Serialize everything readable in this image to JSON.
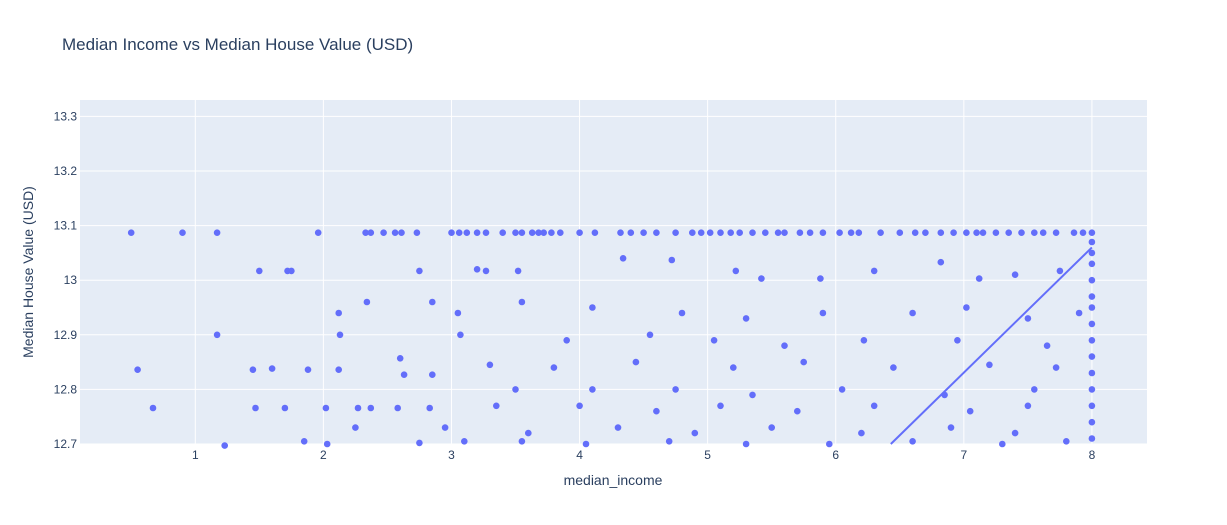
{
  "chart_data": {
    "type": "scatter",
    "title": "Median Income vs Median House Value (USD)",
    "xlabel": "median_income",
    "ylabel": "Median House Value (USD)",
    "xlim": [
      0.1,
      8.43
    ],
    "ylim": [
      12.7,
      13.33
    ],
    "x_ticks": [
      1,
      2,
      3,
      4,
      5,
      6,
      7,
      8
    ],
    "y_ticks": [
      12.7,
      12.8,
      12.9,
      13.0,
      13.1,
      13.2,
      13.3
    ],
    "x_tick_labels": [
      "1",
      "2",
      "3",
      "4",
      "5",
      "6",
      "7",
      "8"
    ],
    "y_tick_labels": [
      "12.7",
      "12.8",
      "12.9",
      "13",
      "13.1",
      "13.2",
      "13.3"
    ],
    "grid": true,
    "marker_color": "#636efa",
    "plot_background": "#e5ecf6",
    "trendline": {
      "x": [
        6.43,
        8.0
      ],
      "y": [
        12.7,
        13.06
      ]
    },
    "series": [
      {
        "points": [
          [
            0.5,
            13.087
          ],
          [
            0.9,
            13.087
          ],
          [
            1.17,
            13.087
          ],
          [
            1.96,
            13.087
          ],
          [
            2.33,
            13.087
          ],
          [
            2.37,
            13.087
          ],
          [
            2.47,
            13.087
          ],
          [
            2.56,
            13.087
          ],
          [
            2.61,
            13.087
          ],
          [
            2.73,
            13.087
          ],
          [
            3.0,
            13.087
          ],
          [
            3.06,
            13.087
          ],
          [
            3.12,
            13.087
          ],
          [
            3.2,
            13.087
          ],
          [
            3.27,
            13.087
          ],
          [
            3.4,
            13.087
          ],
          [
            3.5,
            13.087
          ],
          [
            3.55,
            13.087
          ],
          [
            3.63,
            13.087
          ],
          [
            3.68,
            13.087
          ],
          [
            3.72,
            13.087
          ],
          [
            3.78,
            13.087
          ],
          [
            3.85,
            13.087
          ],
          [
            4.0,
            13.087
          ],
          [
            4.12,
            13.087
          ],
          [
            4.32,
            13.087
          ],
          [
            4.4,
            13.087
          ],
          [
            4.5,
            13.087
          ],
          [
            4.6,
            13.087
          ],
          [
            4.75,
            13.087
          ],
          [
            4.88,
            13.087
          ],
          [
            4.95,
            13.087
          ],
          [
            5.02,
            13.087
          ],
          [
            5.1,
            13.087
          ],
          [
            5.18,
            13.087
          ],
          [
            5.25,
            13.087
          ],
          [
            5.35,
            13.087
          ],
          [
            5.45,
            13.087
          ],
          [
            5.55,
            13.087
          ],
          [
            5.6,
            13.087
          ],
          [
            5.72,
            13.087
          ],
          [
            5.8,
            13.087
          ],
          [
            5.9,
            13.087
          ],
          [
            6.03,
            13.087
          ],
          [
            6.12,
            13.087
          ],
          [
            6.18,
            13.087
          ],
          [
            6.35,
            13.087
          ],
          [
            6.5,
            13.087
          ],
          [
            6.62,
            13.087
          ],
          [
            6.7,
            13.087
          ],
          [
            6.82,
            13.087
          ],
          [
            6.92,
            13.087
          ],
          [
            7.02,
            13.087
          ],
          [
            7.1,
            13.087
          ],
          [
            7.15,
            13.087
          ],
          [
            7.25,
            13.087
          ],
          [
            7.35,
            13.087
          ],
          [
            7.45,
            13.087
          ],
          [
            7.55,
            13.087
          ],
          [
            7.62,
            13.087
          ],
          [
            7.72,
            13.087
          ],
          [
            7.86,
            13.087
          ],
          [
            7.93,
            13.087
          ],
          [
            1.5,
            13.017
          ],
          [
            1.72,
            13.017
          ],
          [
            1.75,
            13.017
          ],
          [
            2.75,
            13.017
          ],
          [
            3.2,
            13.02
          ],
          [
            3.27,
            13.017
          ],
          [
            3.52,
            13.017
          ],
          [
            4.34,
            13.04
          ],
          [
            4.72,
            13.037
          ],
          [
            5.22,
            13.017
          ],
          [
            5.42,
            13.003
          ],
          [
            5.88,
            13.003
          ],
          [
            6.3,
            13.017
          ],
          [
            6.82,
            13.033
          ],
          [
            7.12,
            13.003
          ],
          [
            7.4,
            13.01
          ],
          [
            7.75,
            13.017
          ],
          [
            2.34,
            12.96
          ],
          [
            2.12,
            12.94
          ],
          [
            2.85,
            12.96
          ],
          [
            3.05,
            12.94
          ],
          [
            3.55,
            12.96
          ],
          [
            4.1,
            12.95
          ],
          [
            4.8,
            12.94
          ],
          [
            5.3,
            12.93
          ],
          [
            5.9,
            12.94
          ],
          [
            6.6,
            12.94
          ],
          [
            7.02,
            12.95
          ],
          [
            7.5,
            12.93
          ],
          [
            7.9,
            12.94
          ],
          [
            1.17,
            12.9
          ],
          [
            2.13,
            12.9
          ],
          [
            3.07,
            12.9
          ],
          [
            3.9,
            12.89
          ],
          [
            4.55,
            12.9
          ],
          [
            5.05,
            12.89
          ],
          [
            5.6,
            12.88
          ],
          [
            6.22,
            12.89
          ],
          [
            6.95,
            12.89
          ],
          [
            7.65,
            12.88
          ],
          [
            0.55,
            12.836
          ],
          [
            1.45,
            12.836
          ],
          [
            1.6,
            12.838
          ],
          [
            1.88,
            12.836
          ],
          [
            2.12,
            12.836
          ],
          [
            2.6,
            12.857
          ],
          [
            3.3,
            12.845
          ],
          [
            3.8,
            12.84
          ],
          [
            4.44,
            12.85
          ],
          [
            5.2,
            12.84
          ],
          [
            5.75,
            12.85
          ],
          [
            6.45,
            12.84
          ],
          [
            7.2,
            12.845
          ],
          [
            7.72,
            12.84
          ],
          [
            2.63,
            12.827
          ],
          [
            2.85,
            12.827
          ],
          [
            3.5,
            12.8
          ],
          [
            4.1,
            12.8
          ],
          [
            4.75,
            12.8
          ],
          [
            5.35,
            12.79
          ],
          [
            6.05,
            12.8
          ],
          [
            6.85,
            12.79
          ],
          [
            7.55,
            12.8
          ],
          [
            0.67,
            12.766
          ],
          [
            1.47,
            12.766
          ],
          [
            1.7,
            12.766
          ],
          [
            2.02,
            12.766
          ],
          [
            2.27,
            12.766
          ],
          [
            2.37,
            12.766
          ],
          [
            2.58,
            12.766
          ],
          [
            2.83,
            12.766
          ],
          [
            3.35,
            12.77
          ],
          [
            4.0,
            12.77
          ],
          [
            4.6,
            12.76
          ],
          [
            5.1,
            12.77
          ],
          [
            5.7,
            12.76
          ],
          [
            6.3,
            12.77
          ],
          [
            7.05,
            12.76
          ],
          [
            7.5,
            12.77
          ],
          [
            2.25,
            12.73
          ],
          [
            2.95,
            12.73
          ],
          [
            3.6,
            12.72
          ],
          [
            4.3,
            12.73
          ],
          [
            4.9,
            12.72
          ],
          [
            5.5,
            12.73
          ],
          [
            6.2,
            12.72
          ],
          [
            6.9,
            12.73
          ],
          [
            7.4,
            12.72
          ],
          [
            1.23,
            12.697
          ],
          [
            1.85,
            12.705
          ],
          [
            2.03,
            12.7
          ],
          [
            2.75,
            12.702
          ],
          [
            3.1,
            12.705
          ],
          [
            3.55,
            12.705
          ],
          [
            4.05,
            12.7
          ],
          [
            4.7,
            12.705
          ],
          [
            5.3,
            12.7
          ],
          [
            5.95,
            12.7
          ],
          [
            6.6,
            12.705
          ],
          [
            7.3,
            12.7
          ],
          [
            7.8,
            12.705
          ],
          [
            8.0,
            13.087
          ],
          [
            8.0,
            13.07
          ],
          [
            8.0,
            13.05
          ],
          [
            8.0,
            13.03
          ],
          [
            8.0,
            13.0
          ],
          [
            8.0,
            12.97
          ],
          [
            8.0,
            12.95
          ],
          [
            8.0,
            12.92
          ],
          [
            8.0,
            12.89
          ],
          [
            8.0,
            12.86
          ],
          [
            8.0,
            12.83
          ],
          [
            8.0,
            12.8
          ],
          [
            8.0,
            12.77
          ],
          [
            8.0,
            12.74
          ],
          [
            8.0,
            12.71
          ]
        ]
      }
    ]
  }
}
